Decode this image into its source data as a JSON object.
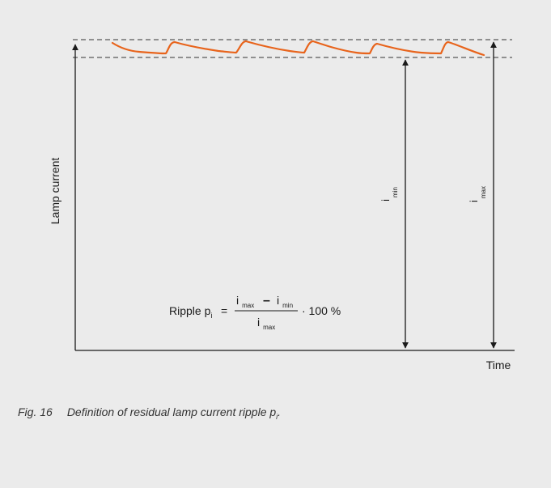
{
  "diagram": {
    "y_axis_label": "Lamp current",
    "x_axis_label": "Time",
    "i_min_label": {
      "base": "i",
      "sub": "min"
    },
    "i_max_label": {
      "base": "i",
      "sub": "max"
    },
    "formula": {
      "lhs_text": "Ripple p",
      "lhs_sub": "i",
      "equals": "=",
      "numerator_a": "i",
      "numerator_a_sub": "max",
      "minus": "–",
      "numerator_b": "i",
      "numerator_b_sub": "min",
      "denominator": "i",
      "denominator_sub": "max",
      "multiplier": "· 100 %"
    },
    "colors": {
      "ripple_curve": "#e8641c",
      "axes": "#1a1a1a",
      "background": "#ebebeb"
    }
  },
  "caption": {
    "fig_number": "Fig. 16",
    "text": "Definition of residual lamp current ripple p",
    "text_sub": "i",
    "text_end": "."
  }
}
